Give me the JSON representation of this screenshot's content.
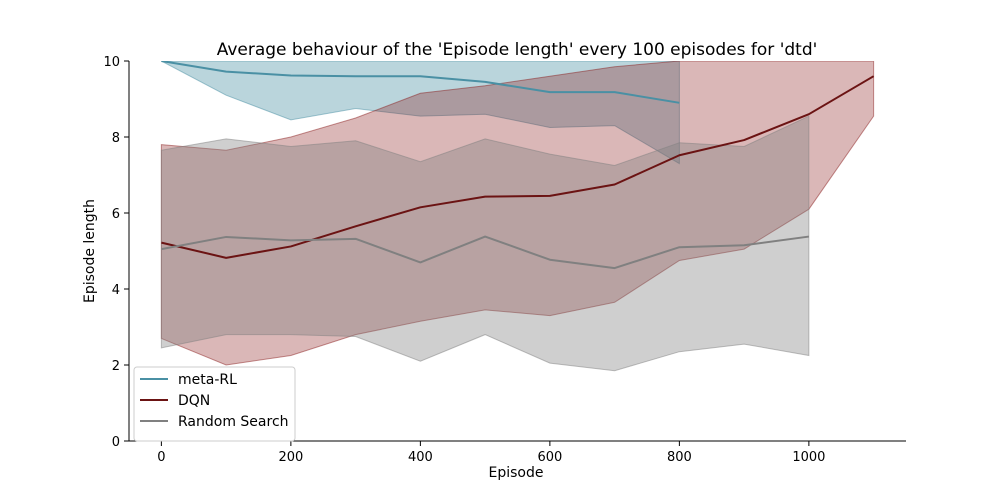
{
  "chart_data": {
    "type": "line",
    "title": "Average behaviour of the 'Episode length' every 100 episodes for 'dtd'",
    "xlabel": "Episode",
    "ylabel": "Episode length",
    "xlim": [
      -50,
      1150
    ],
    "ylim": [
      0,
      10
    ],
    "xticks": [
      0,
      200,
      400,
      600,
      800,
      1000
    ],
    "yticks": [
      0,
      2,
      4,
      6,
      8,
      10
    ],
    "grid": false,
    "legend_position": "lower-left",
    "series": [
      {
        "name": "meta-RL",
        "color": "#4a90a4",
        "band_color": "#4a90a4",
        "band_opacity": 0.38,
        "x": [
          0,
          100,
          200,
          300,
          400,
          500,
          600,
          700,
          800
        ],
        "values": [
          10.0,
          9.72,
          9.62,
          9.6,
          9.6,
          9.45,
          9.18,
          9.18,
          8.9
        ],
        "lower": [
          10.0,
          9.1,
          8.45,
          8.75,
          8.55,
          8.6,
          8.25,
          8.3,
          7.3
        ],
        "upper": [
          10.0,
          10.0,
          10.0,
          10.0,
          10.0,
          10.0,
          10.0,
          10.0,
          10.0
        ]
      },
      {
        "name": "DQN",
        "color": "#6b1313",
        "band_color": "#8b2020",
        "band_opacity": 0.32,
        "x": [
          0,
          100,
          200,
          300,
          400,
          500,
          600,
          700,
          800,
          900,
          1000,
          1100
        ],
        "values": [
          5.22,
          4.82,
          5.12,
          5.65,
          6.15,
          6.43,
          6.45,
          6.75,
          7.52,
          7.92,
          8.6,
          9.6
        ],
        "lower": [
          2.7,
          2.0,
          2.25,
          2.8,
          3.15,
          3.45,
          3.3,
          3.65,
          4.75,
          5.05,
          6.1,
          8.55
        ],
        "upper": [
          7.8,
          7.65,
          8.0,
          8.5,
          9.15,
          9.35,
          9.6,
          9.85,
          10.0,
          10.0,
          10.0,
          10.0
        ]
      },
      {
        "name": "Random Search",
        "color": "#808080",
        "band_color": "#808080",
        "band_opacity": 0.38,
        "x": [
          0,
          100,
          200,
          300,
          400,
          500,
          600,
          700,
          800,
          900,
          1000
        ],
        "values": [
          5.05,
          5.37,
          5.28,
          5.32,
          4.7,
          5.38,
          4.77,
          4.55,
          5.1,
          5.15,
          5.38
        ],
        "lower": [
          2.45,
          2.8,
          2.8,
          2.75,
          2.1,
          2.8,
          2.05,
          1.85,
          2.35,
          2.55,
          2.25
        ],
        "upper": [
          7.65,
          7.95,
          7.75,
          7.9,
          7.35,
          7.95,
          7.55,
          7.25,
          7.85,
          7.75,
          8.55
        ]
      }
    ]
  }
}
